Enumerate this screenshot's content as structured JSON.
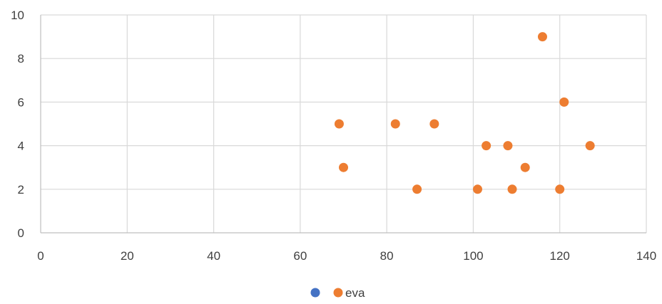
{
  "chart_data": {
    "type": "scatter",
    "title": "",
    "xlabel": "",
    "ylabel": "",
    "xlim": [
      0,
      140
    ],
    "ylim": [
      0,
      10
    ],
    "x_ticks": [
      0,
      20,
      40,
      60,
      80,
      100,
      120,
      140
    ],
    "y_ticks": [
      0,
      2,
      4,
      6,
      8,
      10
    ],
    "x_tick_labels": [
      "0",
      "20",
      "40",
      "60",
      "80",
      "100",
      "120",
      "140"
    ],
    "y_tick_labels": [
      "0",
      "2",
      "4",
      "6",
      "8",
      "10"
    ],
    "grid": true,
    "legend_position": "bottom",
    "series": [
      {
        "name": "",
        "color": "#4472C4",
        "points": []
      },
      {
        "name": "eva",
        "color": "#ED7D31",
        "points": [
          {
            "x": 69,
            "y": 5
          },
          {
            "x": 70,
            "y": 3
          },
          {
            "x": 82,
            "y": 5
          },
          {
            "x": 87,
            "y": 2
          },
          {
            "x": 91,
            "y": 5
          },
          {
            "x": 101,
            "y": 2
          },
          {
            "x": 103,
            "y": 4
          },
          {
            "x": 108,
            "y": 4
          },
          {
            "x": 109,
            "y": 2
          },
          {
            "x": 112,
            "y": 3
          },
          {
            "x": 116,
            "y": 9
          },
          {
            "x": 120,
            "y": 2
          },
          {
            "x": 121,
            "y": 6
          },
          {
            "x": 127,
            "y": 4
          }
        ]
      }
    ]
  }
}
